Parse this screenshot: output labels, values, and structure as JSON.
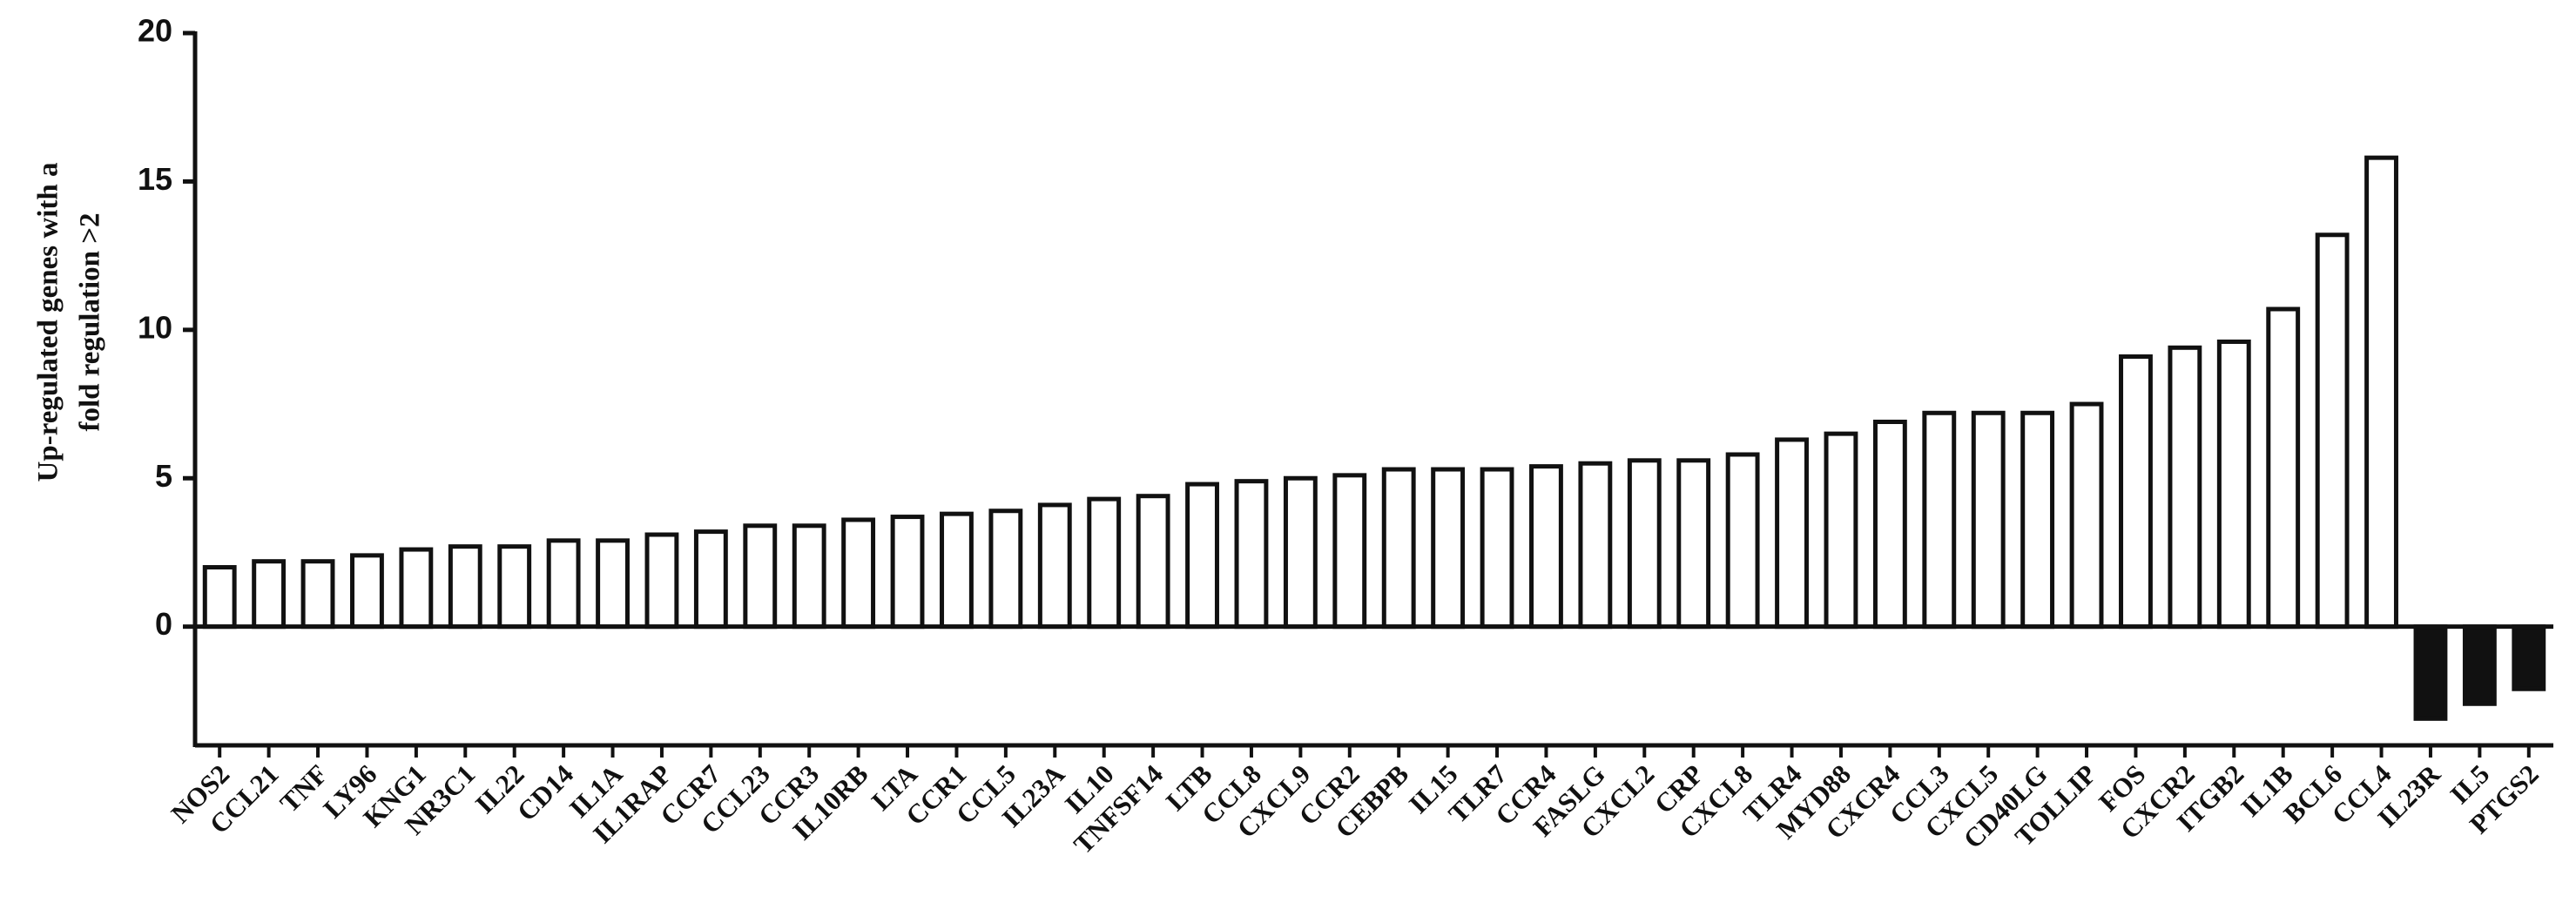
{
  "chart_data": {
    "type": "bar",
    "ylabel": [
      "Up-regulated genes with a",
      "fold regulation  >2"
    ],
    "categories": [
      "NOS2",
      "CCL21",
      "TNF",
      "LY96",
      "KNG1",
      "NR3C1",
      "IL22",
      "CD14",
      "IL1A",
      "IL1RAP",
      "CCR7",
      "CCL23",
      "CCR3",
      "IL10RB",
      "LTA",
      "CCR1",
      "CCL5",
      "IL23A",
      "IL10",
      "TNFSF14",
      "LTB",
      "CCL8",
      "CXCL9",
      "CCR2",
      "CEBPB",
      "IL15",
      "TLR7",
      "CCR4",
      "FASLG",
      "CXCL2",
      "CRP",
      "CXCL8",
      "TLR4",
      "MYD88",
      "CXCR4",
      "CCL3",
      "CXCL5",
      "CD40LG",
      "TOLLIP",
      "FOS",
      "CXCR2",
      "ITGB2",
      "IL1B",
      "BCL6",
      "CCL4",
      "IL23R",
      "IL5",
      "PTGS2"
    ],
    "values": [
      2.0,
      2.2,
      2.2,
      2.4,
      2.6,
      2.7,
      2.7,
      2.9,
      2.9,
      3.1,
      3.2,
      3.4,
      3.4,
      3.6,
      3.7,
      3.8,
      3.9,
      4.1,
      4.3,
      4.4,
      4.8,
      4.9,
      5.0,
      5.1,
      5.3,
      5.3,
      5.3,
      5.4,
      5.5,
      5.6,
      5.6,
      5.8,
      6.3,
      6.5,
      6.9,
      7.2,
      7.2,
      7.2,
      7.5,
      9.1,
      9.4,
      9.6,
      10.7,
      13.2,
      15.8,
      -3.1,
      -2.6,
      -2.1
    ],
    "color": "#ffffff",
    "negative_color": "#111111",
    "ylim": [
      -4,
      20
    ],
    "yticks": [
      0,
      5,
      10,
      15,
      20
    ]
  }
}
